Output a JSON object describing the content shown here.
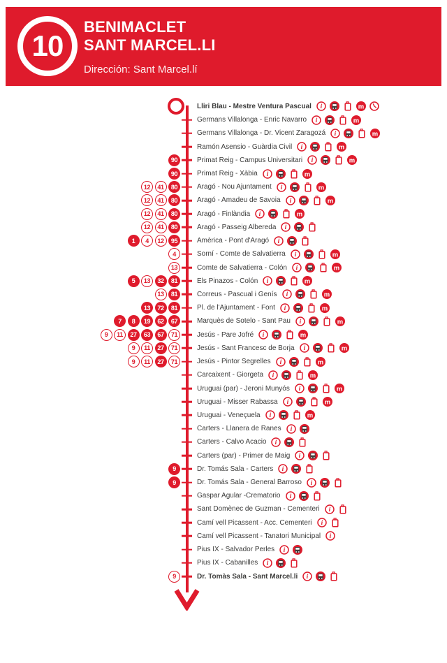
{
  "header": {
    "line_number": "10",
    "title_line1": "BENIMACLET",
    "title_line2": "SANT MARCEL.LI",
    "direction": "Dirección: Sant Marcel.lí"
  },
  "colors": {
    "brand_red": "#DF1B2C",
    "stop_text": "#3C3C3B",
    "bus_icon_dark": "#3E3E3D"
  },
  "icon_names": [
    "info-icon",
    "bus-icon",
    "ticket-machine-icon",
    "metro-icon",
    "clock-icon"
  ],
  "stops": [
    {
      "name": "Lliri Blau - Mestre Ventura Pascual",
      "bold": true,
      "terminus": "start",
      "badges": [],
      "icons": [
        "info",
        "bus",
        "ticket",
        "metro",
        "clock"
      ]
    },
    {
      "name": "Germans Villalonga - Enric Navarro",
      "bold": false,
      "badges": [],
      "icons": [
        "info",
        "bus",
        "ticket",
        "metro"
      ]
    },
    {
      "name": "Germans Villalonga - Dr. Vicent Zaragozá",
      "bold": false,
      "badges": [],
      "icons": [
        "info",
        "bus",
        "ticket",
        "metro"
      ]
    },
    {
      "name": "Ramón Asensio - Guàrdia Civil",
      "bold": false,
      "badges": [],
      "icons": [
        "info",
        "bus",
        "ticket",
        "metro"
      ]
    },
    {
      "name": "Primat Reig - Campus Universitari",
      "bold": false,
      "badges": [
        {
          "n": "90",
          "style": "filled"
        }
      ],
      "icons": [
        "info",
        "bus",
        "ticket",
        "metro"
      ]
    },
    {
      "name": "Primat Reig - Xàbia",
      "bold": false,
      "badges": [
        {
          "n": "90",
          "style": "filled"
        }
      ],
      "icons": [
        "info",
        "bus",
        "ticket",
        "metro"
      ]
    },
    {
      "name": "Aragó - Nou Ajuntament",
      "bold": false,
      "badges": [
        {
          "n": "12",
          "style": "outline"
        },
        {
          "n": "41",
          "style": "outline"
        },
        {
          "n": "80",
          "style": "filled"
        }
      ],
      "icons": [
        "info",
        "bus",
        "ticket",
        "metro"
      ]
    },
    {
      "name": "Aragó - Amadeu de Savoia",
      "bold": false,
      "badges": [
        {
          "n": "12",
          "style": "outline"
        },
        {
          "n": "41",
          "style": "outline"
        },
        {
          "n": "80",
          "style": "filled"
        }
      ],
      "icons": [
        "info",
        "bus",
        "ticket",
        "metro"
      ]
    },
    {
      "name": "Aragó - Finlàndia",
      "bold": false,
      "badges": [
        {
          "n": "12",
          "style": "outline"
        },
        {
          "n": "41",
          "style": "outline"
        },
        {
          "n": "80",
          "style": "filled"
        }
      ],
      "icons": [
        "info",
        "bus",
        "ticket",
        "metro"
      ]
    },
    {
      "name": "Aragó - Passeig Albereda",
      "bold": false,
      "badges": [
        {
          "n": "12",
          "style": "outline"
        },
        {
          "n": "41",
          "style": "outline"
        },
        {
          "n": "80",
          "style": "filled"
        }
      ],
      "icons": [
        "info",
        "bus",
        "ticket"
      ]
    },
    {
      "name": "Amèrica - Pont d'Aragó",
      "bold": false,
      "badges": [
        {
          "n": "1",
          "style": "filled"
        },
        {
          "n": "4",
          "style": "outline"
        },
        {
          "n": "12",
          "style": "outline"
        },
        {
          "n": "95",
          "style": "filled"
        }
      ],
      "icons": [
        "info",
        "bus",
        "ticket"
      ]
    },
    {
      "name": "Sorní - Comte de Salvatierra",
      "bold": false,
      "badges": [
        {
          "n": "4",
          "style": "outline"
        }
      ],
      "icons": [
        "info",
        "bus",
        "ticket",
        "metro"
      ]
    },
    {
      "name": "Comte de Salvatierra - Colón",
      "bold": false,
      "badges": [
        {
          "n": "13",
          "style": "outline"
        }
      ],
      "icons": [
        "info",
        "bus",
        "ticket",
        "metro"
      ]
    },
    {
      "name": "Els Pinazos - Colón",
      "bold": false,
      "badges": [
        {
          "n": "5",
          "style": "filled"
        },
        {
          "n": "13",
          "style": "outline"
        },
        {
          "n": "32",
          "style": "filled"
        },
        {
          "n": "81",
          "style": "filled"
        }
      ],
      "icons": [
        "info",
        "bus",
        "ticket",
        "metro"
      ]
    },
    {
      "name": "Correus - Pascual i Genís",
      "bold": false,
      "badges": [
        {
          "n": "13",
          "style": "outline"
        },
        {
          "n": "81",
          "style": "filled"
        }
      ],
      "icons": [
        "info",
        "bus",
        "ticket",
        "metro"
      ]
    },
    {
      "name": "Pl. de l'Ajuntament - Font",
      "bold": false,
      "badges": [
        {
          "n": "13",
          "style": "filled"
        },
        {
          "n": "72",
          "style": "filled"
        },
        {
          "n": "81",
          "style": "filled"
        }
      ],
      "icons": [
        "info",
        "bus",
        "ticket",
        "metro"
      ]
    },
    {
      "name": "Marquès de Sotelo - Sant Pau",
      "bold": false,
      "badges": [
        {
          "n": "7",
          "style": "filled"
        },
        {
          "n": "8",
          "style": "filled"
        },
        {
          "n": "19",
          "style": "filled"
        },
        {
          "n": "62",
          "style": "filled"
        },
        {
          "n": "67",
          "style": "filled"
        }
      ],
      "icons": [
        "info",
        "bus",
        "ticket",
        "metro"
      ]
    },
    {
      "name": "Jesús - Pare Jofré",
      "bold": false,
      "badges": [
        {
          "n": "9",
          "style": "outline"
        },
        {
          "n": "11",
          "style": "outline"
        },
        {
          "n": "27",
          "style": "filled"
        },
        {
          "n": "63",
          "style": "filled"
        },
        {
          "n": "67",
          "style": "filled"
        },
        {
          "n": "71",
          "style": "outline"
        }
      ],
      "icons": [
        "info",
        "bus",
        "ticket",
        "metro"
      ]
    },
    {
      "name": "Jesús - Sant Francesc de Borja",
      "bold": false,
      "badges": [
        {
          "n": "9",
          "style": "outline"
        },
        {
          "n": "11",
          "style": "outline"
        },
        {
          "n": "27",
          "style": "filled"
        },
        {
          "n": "71",
          "style": "outline"
        }
      ],
      "icons": [
        "info",
        "bus",
        "ticket",
        "metro"
      ]
    },
    {
      "name": "Jesús - Pintor Segrelles",
      "bold": false,
      "badges": [
        {
          "n": "9",
          "style": "outline"
        },
        {
          "n": "11",
          "style": "outline"
        },
        {
          "n": "27",
          "style": "filled"
        },
        {
          "n": "71",
          "style": "outline"
        }
      ],
      "icons": [
        "info",
        "bus",
        "ticket",
        "metro"
      ]
    },
    {
      "name": "Carcaixent - Giorgeta",
      "bold": false,
      "badges": [],
      "icons": [
        "info",
        "bus",
        "ticket",
        "metro"
      ]
    },
    {
      "name": "Uruguai (par) - Jeroni Munyós",
      "bold": false,
      "badges": [],
      "icons": [
        "info",
        "bus",
        "ticket",
        "metro"
      ]
    },
    {
      "name": "Uruguai - Misser Rabassa",
      "bold": false,
      "badges": [],
      "icons": [
        "info",
        "bus",
        "ticket",
        "metro"
      ]
    },
    {
      "name": "Uruguai - Veneçuela",
      "bold": false,
      "badges": [],
      "icons": [
        "info",
        "bus",
        "ticket",
        "metro"
      ]
    },
    {
      "name": "Carters - Llanera de Ranes",
      "bold": false,
      "badges": [],
      "icons": [
        "info",
        "bus"
      ]
    },
    {
      "name": "Carters - Calvo Acacio",
      "bold": false,
      "badges": [],
      "icons": [
        "info",
        "bus",
        "ticket"
      ]
    },
    {
      "name": "Carters (par) - Primer de Maig",
      "bold": false,
      "badges": [],
      "icons": [
        "info",
        "bus",
        "ticket"
      ]
    },
    {
      "name": "Dr. Tomás Sala - Carters",
      "bold": false,
      "badges": [
        {
          "n": "9",
          "style": "filled"
        }
      ],
      "icons": [
        "info",
        "bus",
        "ticket"
      ]
    },
    {
      "name": "Dr. Tomás Sala - General Barroso",
      "bold": false,
      "badges": [
        {
          "n": "9",
          "style": "filled"
        }
      ],
      "icons": [
        "info",
        "bus",
        "ticket"
      ]
    },
    {
      "name": "Gaspar Agular -Crematorio",
      "bold": false,
      "badges": [],
      "icons": [
        "info",
        "bus",
        "ticket"
      ]
    },
    {
      "name": "Sant Domènec de Guzman - Cementeri",
      "bold": false,
      "badges": [],
      "icons": [
        "info",
        "ticket"
      ]
    },
    {
      "name": "Camí vell Picassent - Acc. Cementeri",
      "bold": false,
      "badges": [],
      "icons": [
        "info",
        "ticket"
      ]
    },
    {
      "name": "Camí vell Picassent - Tanatori Municipal",
      "bold": false,
      "badges": [],
      "icons": [
        "info"
      ]
    },
    {
      "name": "Pius IX - Salvador Perles",
      "bold": false,
      "badges": [],
      "icons": [
        "info",
        "bus"
      ]
    },
    {
      "name": "Pius IX - Cabanilles",
      "bold": false,
      "badges": [],
      "icons": [
        "info",
        "bus",
        "ticket"
      ]
    },
    {
      "name": "Dr. Tomàs Sala - Sant Marcel.li",
      "bold": true,
      "terminus": "end",
      "badges": [
        {
          "n": "9",
          "style": "outline"
        }
      ],
      "icons": [
        "info",
        "bus",
        "ticket"
      ]
    }
  ]
}
